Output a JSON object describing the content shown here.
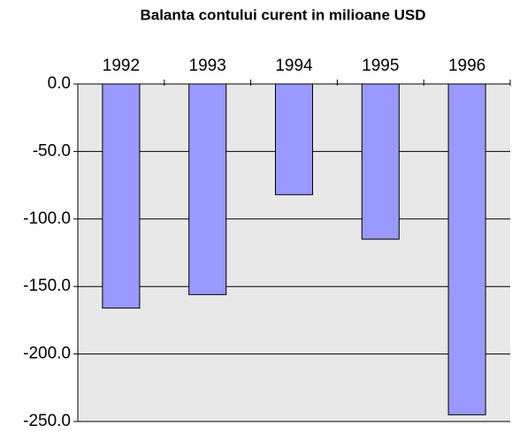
{
  "chart_data": {
    "type": "bar",
    "title": "Balanta contului curent in milioane USD",
    "categories": [
      "1992",
      "1993",
      "1994",
      "1995",
      "1996"
    ],
    "values": [
      -166,
      -156,
      -82,
      -115,
      -245
    ],
    "color": "#9999ff",
    "ylim": [
      -250,
      0
    ],
    "yticks": [
      {
        "value": 0,
        "label": "0.0"
      },
      {
        "value": -50,
        "label": "-50.0"
      },
      {
        "value": -100,
        "label": "-100.0"
      },
      {
        "value": -150,
        "label": "-150.0"
      },
      {
        "value": -200,
        "label": "-200.0"
      },
      {
        "value": -250,
        "label": "-250.0"
      }
    ],
    "grid": true
  }
}
